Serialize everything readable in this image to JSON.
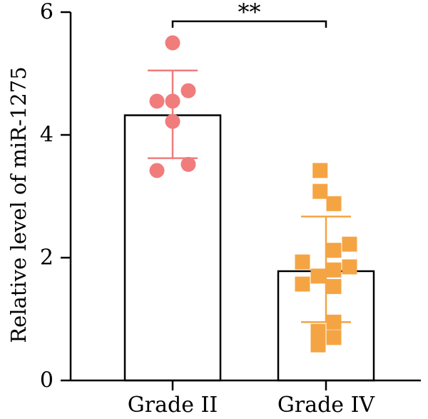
{
  "chart_data": {
    "type": "bar",
    "ylabel": "Relative level of miR-1275",
    "xlabel": "",
    "ylim": [
      0,
      6
    ],
    "yticks": [
      "0",
      "2",
      "4",
      "6"
    ],
    "grid": false,
    "categories": [
      "Grade II",
      "Grade IV"
    ],
    "bars": [
      {
        "category": "Grade II",
        "mean": 4.32,
        "error_low": 3.62,
        "error_high": 5.05,
        "color": "#F07C7C",
        "marker": "circle",
        "points": [
          {
            "x": 0.0,
            "y": 5.5
          },
          {
            "x": -0.4,
            "y": 4.55
          },
          {
            "x": 0.0,
            "y": 4.55
          },
          {
            "x": 0.4,
            "y": 4.72
          },
          {
            "x": 0.0,
            "y": 4.22
          },
          {
            "x": -0.4,
            "y": 3.42
          },
          {
            "x": 0.4,
            "y": 3.52
          }
        ]
      },
      {
        "category": "Grade IV",
        "mean": 1.78,
        "error_low": 0.95,
        "error_high": 2.67,
        "color": "#F5A443",
        "marker": "square",
        "points": [
          {
            "x": -0.15,
            "y": 3.42
          },
          {
            "x": -0.15,
            "y": 3.08
          },
          {
            "x": 0.2,
            "y": 2.88
          },
          {
            "x": 0.2,
            "y": 2.12
          },
          {
            "x": 0.6,
            "y": 2.22
          },
          {
            "x": -0.6,
            "y": 1.93
          },
          {
            "x": 0.6,
            "y": 1.85
          },
          {
            "x": 0.2,
            "y": 1.8
          },
          {
            "x": -0.2,
            "y": 1.7
          },
          {
            "x": -0.6,
            "y": 1.57
          },
          {
            "x": 0.2,
            "y": 1.53
          },
          {
            "x": 0.2,
            "y": 0.95
          },
          {
            "x": -0.2,
            "y": 0.8
          },
          {
            "x": 0.2,
            "y": 0.7
          },
          {
            "x": -0.2,
            "y": 0.58
          }
        ]
      }
    ],
    "significance": {
      "label": "**",
      "between": [
        "Grade II",
        "Grade IV"
      ],
      "y": 5.85
    }
  }
}
